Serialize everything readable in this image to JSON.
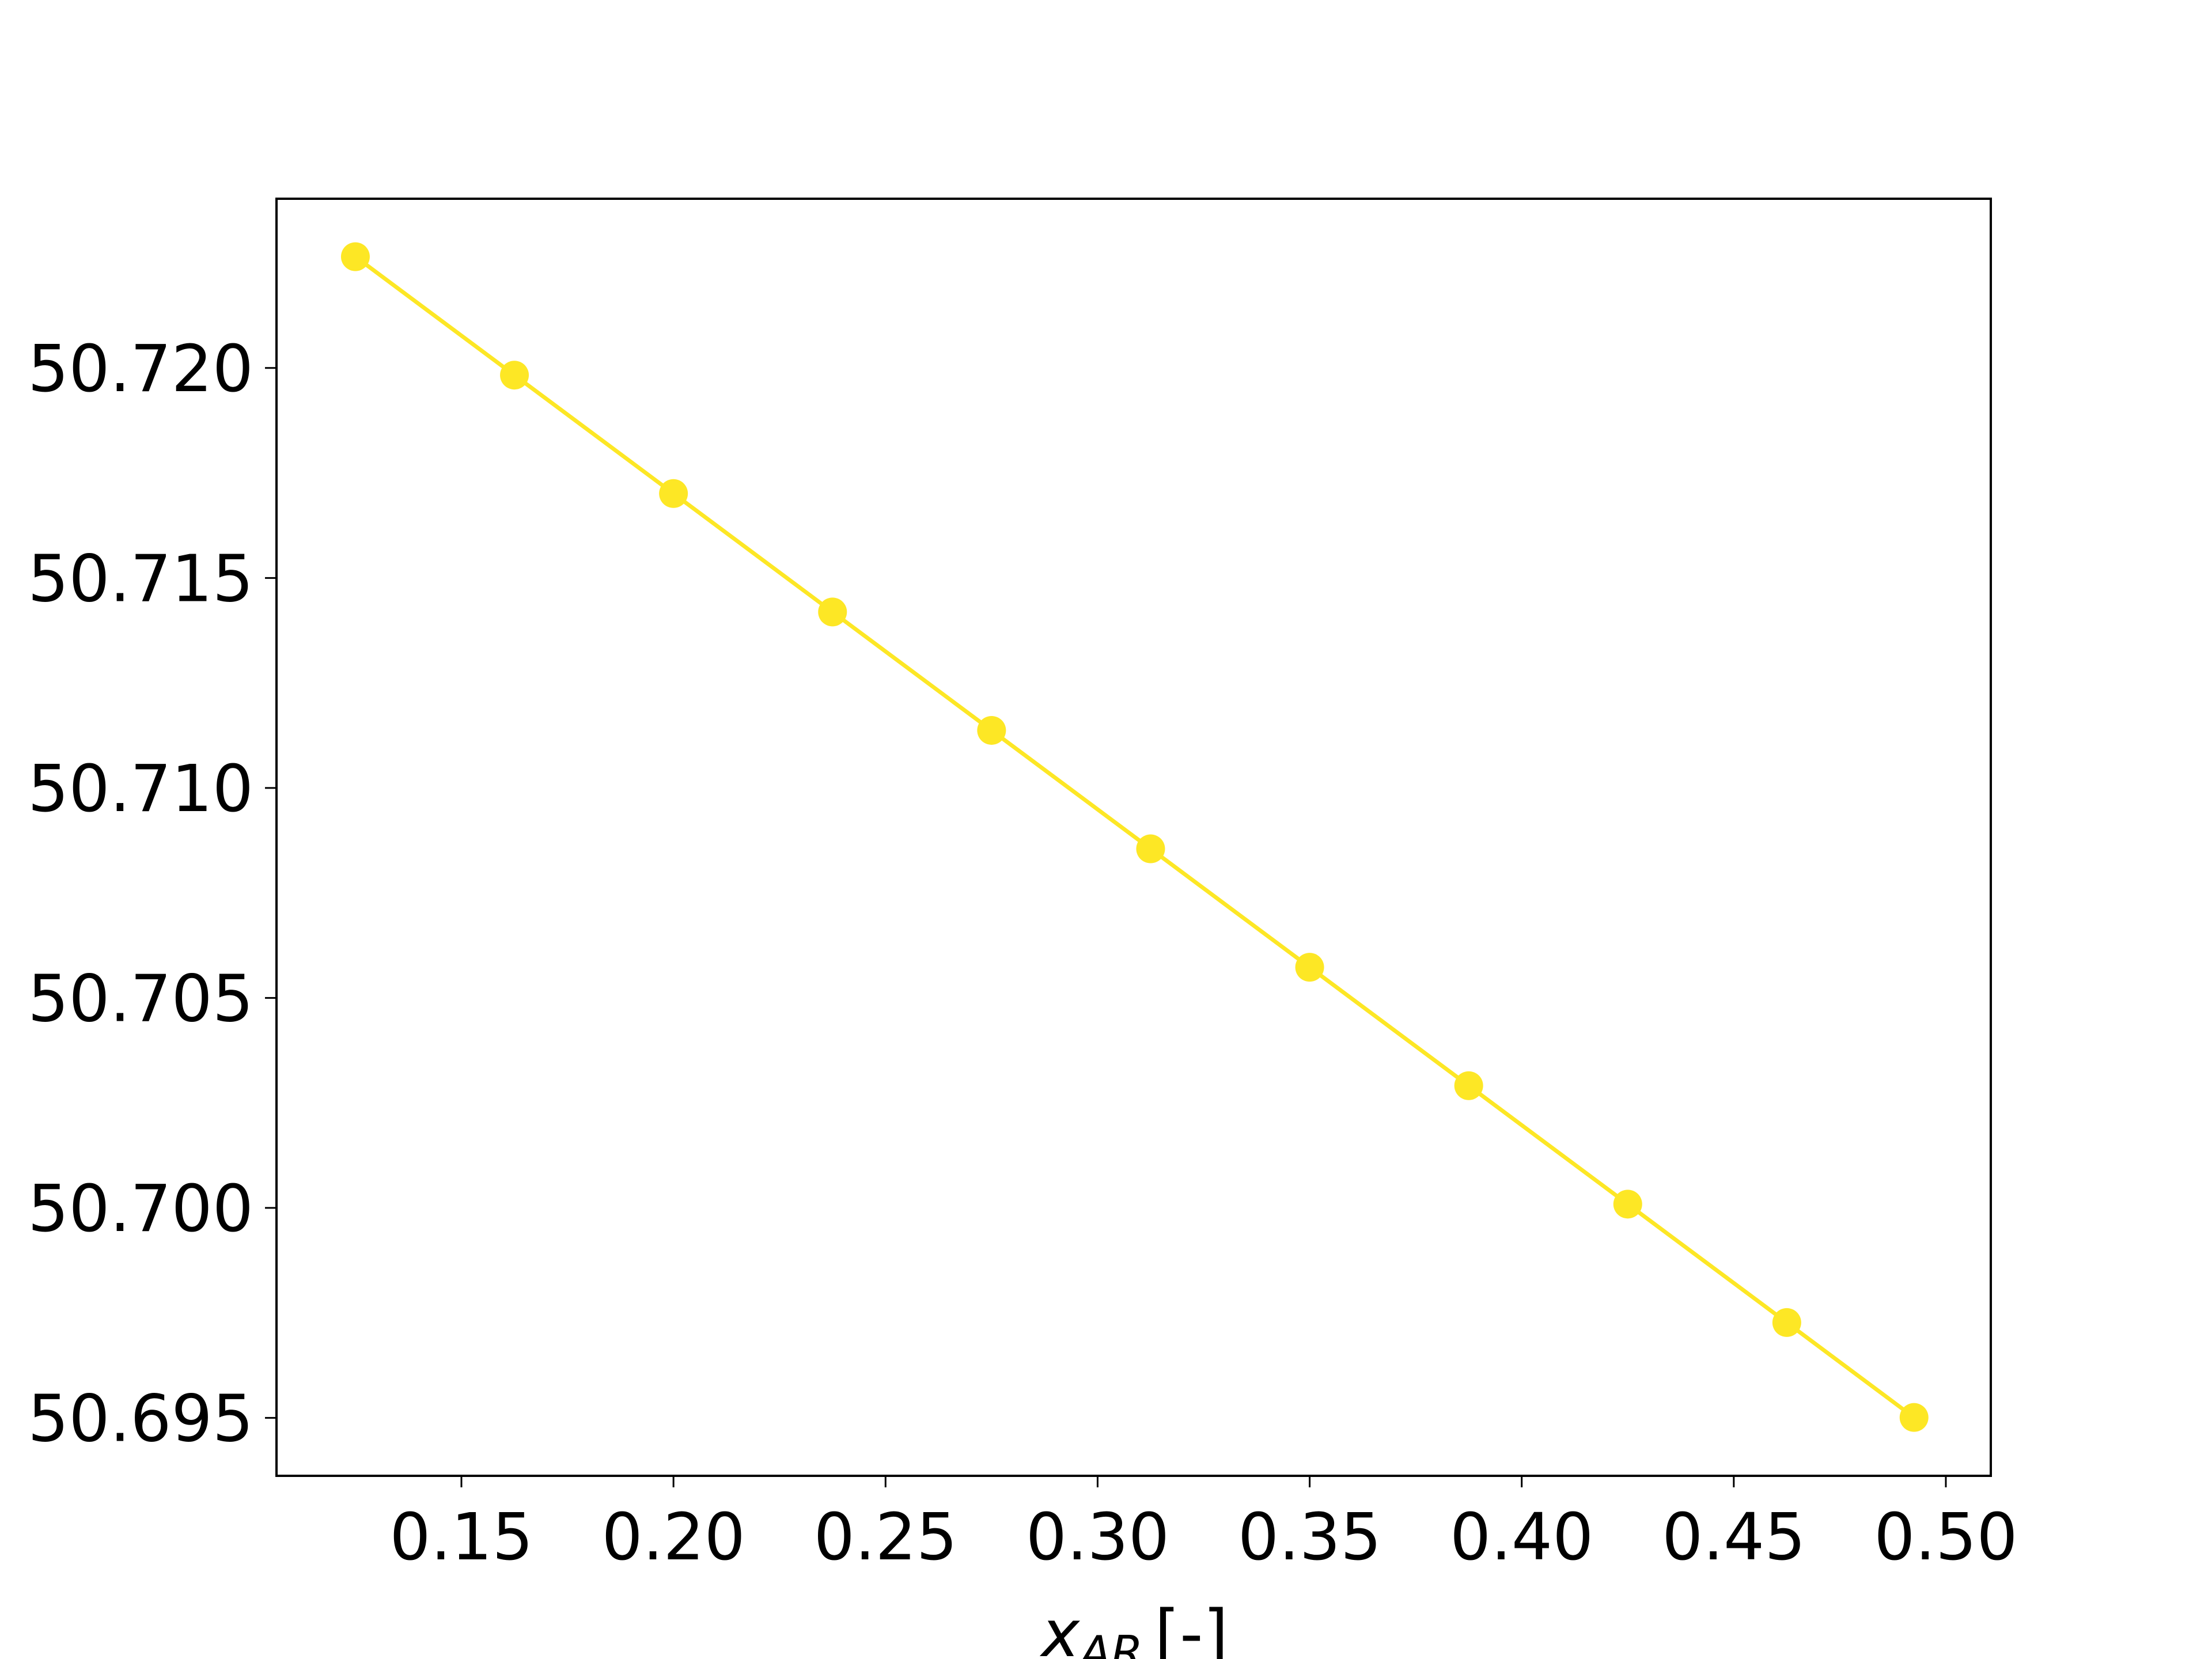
{
  "chart_data": {
    "type": "line",
    "xlabel": {
      "symbol": "x",
      "subscript": "AR",
      "unit": "[-]"
    },
    "x": [
      0.125,
      0.1625,
      0.2,
      0.2375,
      0.275,
      0.3125,
      0.35,
      0.3875,
      0.425,
      0.4625,
      0.4925
    ],
    "series": [
      {
        "color": "#fde725",
        "values": [
          50.72265,
          50.71983,
          50.71701,
          50.71419,
          50.71137,
          50.70855,
          50.70573,
          50.70291,
          50.70009,
          50.69727,
          50.69501
        ]
      }
    ],
    "xlim": [
      0.1064,
      0.5106
    ],
    "ylim": [
      50.69362,
      50.72403
    ],
    "xticks": [
      0.15,
      {
        "value": 0.2,
        "label": "0.20"
      },
      0.25,
      {
        "value": 0.3,
        "label": "0.30"
      },
      0.35,
      {
        "value": 0.4,
        "label": "0.40"
      },
      0.45,
      {
        "value": 0.5,
        "label": "0.50"
      }
    ],
    "yticks": [
      {
        "value": 50.695,
        "label": "50.695"
      },
      {
        "value": 50.7,
        "label": "50.700"
      },
      {
        "value": 50.705,
        "label": "50.705"
      },
      {
        "value": 50.71,
        "label": "50.710"
      },
      {
        "value": 50.715,
        "label": "50.715"
      },
      {
        "value": 50.72,
        "label": "50.720"
      }
    ],
    "grid": false
  }
}
